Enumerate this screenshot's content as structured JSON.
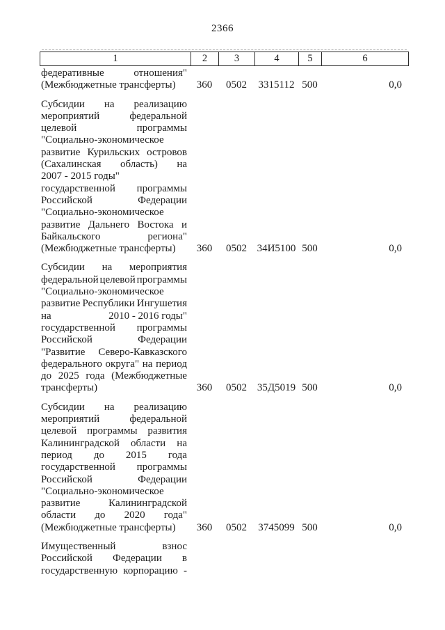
{
  "page": {
    "number": "2366"
  },
  "table": {
    "header": [
      "1",
      "2",
      "3",
      "4",
      "5",
      "6"
    ],
    "rows": [
      {
        "name_lines": [
          {
            "text": "федеративные отношения\"",
            "justify": true
          },
          {
            "text": "(Межбюджетные трансферты)",
            "justify": false
          }
        ],
        "col2": "360",
        "col3": "0502",
        "col4": "3315112",
        "col5": "500",
        "col6": "0,0"
      },
      {
        "name_lines": [
          {
            "text": "Субсидии на реализацию",
            "justify": true
          },
          {
            "text": "мероприятий федеральной",
            "justify": true
          },
          {
            "text": "целевой программы",
            "justify": true
          },
          {
            "text": "\"Социально-экономическое",
            "justify": false
          },
          {
            "text": "развитие Курильских островов",
            "justify": true
          },
          {
            "text": "(Сахалинская область) на",
            "justify": true
          },
          {
            "text": "2007 - 2015 годы\"",
            "justify": false
          },
          {
            "text": "государственной программы",
            "justify": true
          },
          {
            "text": "Российской Федерации",
            "justify": true
          },
          {
            "text": "\"Социально-экономическое",
            "justify": false
          },
          {
            "text": "развитие Дальнего Востока и",
            "justify": true
          },
          {
            "text": "Байкальского региона\"",
            "justify": true
          },
          {
            "text": "(Межбюджетные трансферты)",
            "justify": false
          }
        ],
        "col2": "360",
        "col3": "0502",
        "col4": "34И5100",
        "col5": "500",
        "col6": "0,0"
      },
      {
        "name_lines": [
          {
            "text": "Субсидии на мероприятия",
            "justify": true
          },
          {
            "text": "федеральной целевой программы",
            "justify": true
          },
          {
            "text": "\"Социально-экономическое",
            "justify": false
          },
          {
            "text": "развитие Республики Ингушетия",
            "justify": true
          },
          {
            "text": "на 2010 - 2016 годы\"",
            "justify": true,
            "chunks": [
              "на",
              "2010 - 2016 годы\""
            ]
          },
          {
            "text": "государственной программы",
            "justify": true
          },
          {
            "text": "Российской Федерации",
            "justify": true
          },
          {
            "text": "\"Развитие Северо-Кавказского",
            "justify": true
          },
          {
            "text": "федерального округа\" на период",
            "justify": true
          },
          {
            "text": "до 2025 года (Межбюджетные",
            "justify": true
          },
          {
            "text": "трансферты)",
            "justify": false
          }
        ],
        "col2": "360",
        "col3": "0502",
        "col4": "35Д5019",
        "col5": "500",
        "col6": "0,0"
      },
      {
        "name_lines": [
          {
            "text": "Субсидии на реализацию",
            "justify": true
          },
          {
            "text": "мероприятий федеральной",
            "justify": true
          },
          {
            "text": "целевой программы развития",
            "justify": true
          },
          {
            "text": "Калининградской области на",
            "justify": true
          },
          {
            "text": "период до 2015 года",
            "justify": true
          },
          {
            "text": "государственной программы",
            "justify": true
          },
          {
            "text": "Российской Федерации",
            "justify": true
          },
          {
            "text": "\"Социально-экономическое",
            "justify": false
          },
          {
            "text": "развитие Калининградской",
            "justify": true
          },
          {
            "text": "области до 2020 года\"",
            "justify": true
          },
          {
            "text": "(Межбюджетные трансферты)",
            "justify": false
          }
        ],
        "col2": "360",
        "col3": "0502",
        "col4": "3745099",
        "col5": "500",
        "col6": "0,0"
      },
      {
        "name_lines": [
          {
            "text": "Имущественный взнос",
            "justify": true
          },
          {
            "text": "Российской Федерации в",
            "justify": true
          },
          {
            "text": "государственную корпорацию -",
            "justify": true
          }
        ],
        "col2": "",
        "col3": "",
        "col4": "",
        "col5": "",
        "col6": ""
      }
    ]
  }
}
